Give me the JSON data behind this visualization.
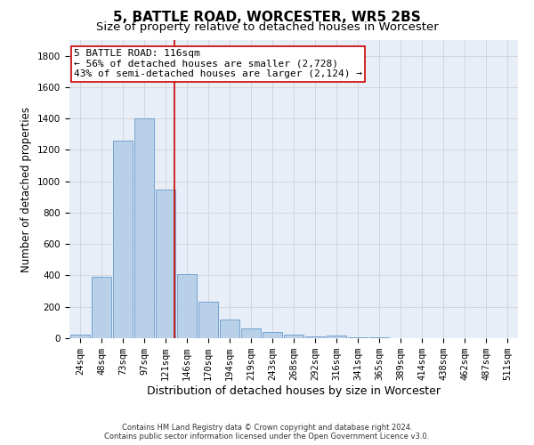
{
  "title": "5, BATTLE ROAD, WORCESTER, WR5 2BS",
  "subtitle": "Size of property relative to detached houses in Worcester",
  "xlabel": "Distribution of detached houses by size in Worcester",
  "ylabel": "Number of detached properties",
  "bar_color": "#b8d0e8",
  "bar_edge_color": "#6699cc",
  "grid_color": "#cccccc",
  "background_color": "#ffffff",
  "plot_bg_color": "#e8eef8",
  "categories": [
    "24sqm",
    "48sqm",
    "73sqm",
    "97sqm",
    "121sqm",
    "146sqm",
    "170sqm",
    "194sqm",
    "219sqm",
    "243sqm",
    "268sqm",
    "292sqm",
    "316sqm",
    "341sqm",
    "365sqm",
    "389sqm",
    "414sqm",
    "438sqm",
    "462sqm",
    "487sqm",
    "511sqm"
  ],
  "values": [
    25,
    390,
    1260,
    1400,
    950,
    410,
    230,
    120,
    65,
    40,
    20,
    10,
    15,
    5,
    5,
    0,
    0,
    0,
    0,
    0,
    0
  ],
  "ylim": [
    0,
    1900
  ],
  "yticks": [
    0,
    200,
    400,
    600,
    800,
    1000,
    1200,
    1400,
    1600,
    1800
  ],
  "vline_x": 4.42,
  "vline_color": "#cc0000",
  "annotation_line1": "5 BATTLE ROAD: 116sqm",
  "annotation_line2": "← 56% of detached houses are smaller (2,728)",
  "annotation_line3": "43% of semi-detached houses are larger (2,124) →",
  "annotation_box_color": "#ffffff",
  "annotation_box_edge": "#cc0000",
  "footer_line1": "Contains HM Land Registry data © Crown copyright and database right 2024.",
  "footer_line2": "Contains public sector information licensed under the Open Government Licence v3.0.",
  "title_fontsize": 11,
  "subtitle_fontsize": 9.5,
  "tick_fontsize": 7.5,
  "ylabel_fontsize": 8.5,
  "xlabel_fontsize": 9,
  "annotation_fontsize": 8,
  "footer_fontsize": 6
}
